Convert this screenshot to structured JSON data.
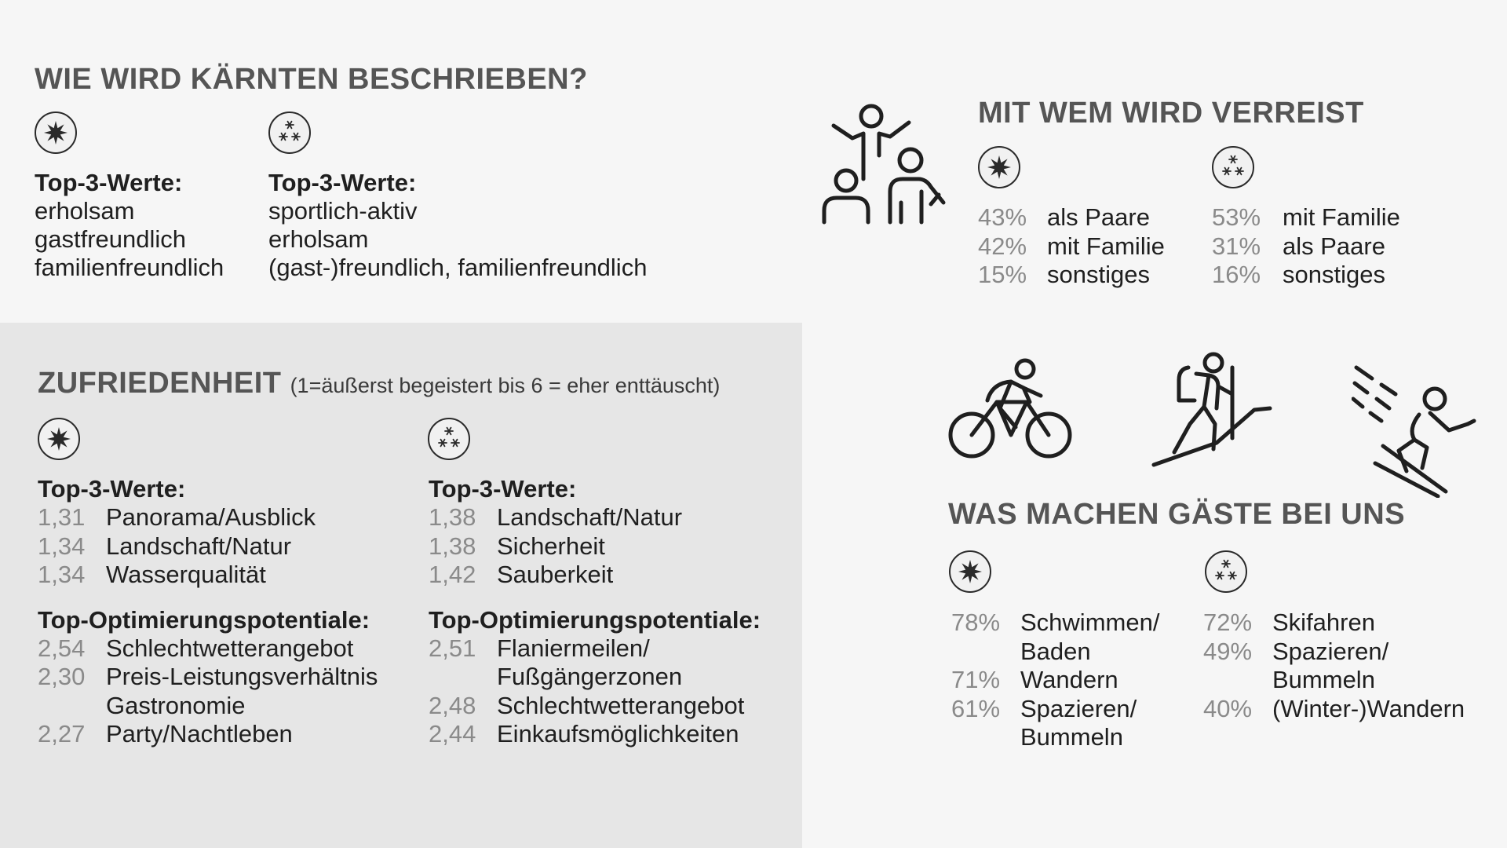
{
  "describe": {
    "title": "WIE WIRD KÄRNTEN BESCHRIEBEN?",
    "summer": {
      "icon": "sun-icon",
      "label": "Top-3-Werte:",
      "items": [
        "erholsam",
        "gastfreundlich",
        "familienfreundlich"
      ]
    },
    "winter": {
      "icon": "snowflakes-icon",
      "label": "Top-3-Werte:",
      "items": [
        "sportlich-aktiv",
        "erholsam",
        "(gast-)freundlich, familienfreundlich"
      ]
    }
  },
  "travel": {
    "title": "MIT WEM WIRD VERREIST",
    "icon": "group-people-icon",
    "summer": {
      "icon": "sun-icon",
      "rows": [
        {
          "pct": "43%",
          "label": "als Paare"
        },
        {
          "pct": "42%",
          "label": "mit Familie"
        },
        {
          "pct": "15%",
          "label": "sonstiges"
        }
      ]
    },
    "winter": {
      "icon": "snowflakes-icon",
      "rows": [
        {
          "pct": "53%",
          "label": "mit Familie"
        },
        {
          "pct": "31%",
          "label": "als Paare"
        },
        {
          "pct": "16%",
          "label": "sonstiges"
        }
      ]
    }
  },
  "satisfaction": {
    "title": "ZUFRIEDENHEIT",
    "subtitle": "(1=äußerst begeistert bis 6 = eher enttäuscht)",
    "summer": {
      "icon": "sun-icon",
      "top_label": "Top-3-Werte:",
      "top": [
        {
          "v": "1,31",
          "label": "Panorama/Ausblick"
        },
        {
          "v": "1,34",
          "label": "Landschaft/Natur"
        },
        {
          "v": "1,34",
          "label": "Wasserqualität"
        }
      ],
      "opt_label": "Top-Optimierungspotentiale:",
      "opt": [
        {
          "v": "2,54",
          "label": "Schlechtwetterangebot",
          "label2": ""
        },
        {
          "v": "2,30",
          "label": "Preis-Leistungsverhältnis",
          "label2": "Gastronomie"
        },
        {
          "v": "2,27",
          "label": "Party/Nachtleben",
          "label2": ""
        }
      ]
    },
    "winter": {
      "icon": "snowflakes-icon",
      "top_label": "Top-3-Werte:",
      "top": [
        {
          "v": "1,38",
          "label": "Landschaft/Natur"
        },
        {
          "v": "1,38",
          "label": "Sicherheit"
        },
        {
          "v": "1,42",
          "label": "Sauberkeit"
        }
      ],
      "opt_label": "Top-Optimierungspotentiale:",
      "opt": [
        {
          "v": "2,51",
          "label": "Flaniermeilen/",
          "label2": "Fußgängerzonen"
        },
        {
          "v": "2,48",
          "label": "Schlechtwetterangebot",
          "label2": ""
        },
        {
          "v": "2,44",
          "label": "Einkaufsmöglichkeiten",
          "label2": ""
        }
      ]
    }
  },
  "activities": {
    "title": "WAS MACHEN GÄSTE BEI UNS",
    "icons": [
      "cyclist-icon",
      "hiker-icon",
      "skier-icon"
    ],
    "summer": {
      "icon": "sun-icon",
      "rows": [
        {
          "pct": "78%",
          "label": "Schwimmen/",
          "label2": "Baden"
        },
        {
          "pct": "71%",
          "label": "Wandern",
          "label2": ""
        },
        {
          "pct": "61%",
          "label": "Spazieren/",
          "label2": "Bummeln"
        }
      ]
    },
    "winter": {
      "icon": "snowflakes-icon",
      "rows": [
        {
          "pct": "72%",
          "label": "Skifahren",
          "label2": ""
        },
        {
          "pct": "49%",
          "label": "Spazieren/",
          "label2": "Bummeln"
        },
        {
          "pct": "40%",
          "label": "(Winter-)Wandern",
          "label2": ""
        }
      ]
    }
  }
}
